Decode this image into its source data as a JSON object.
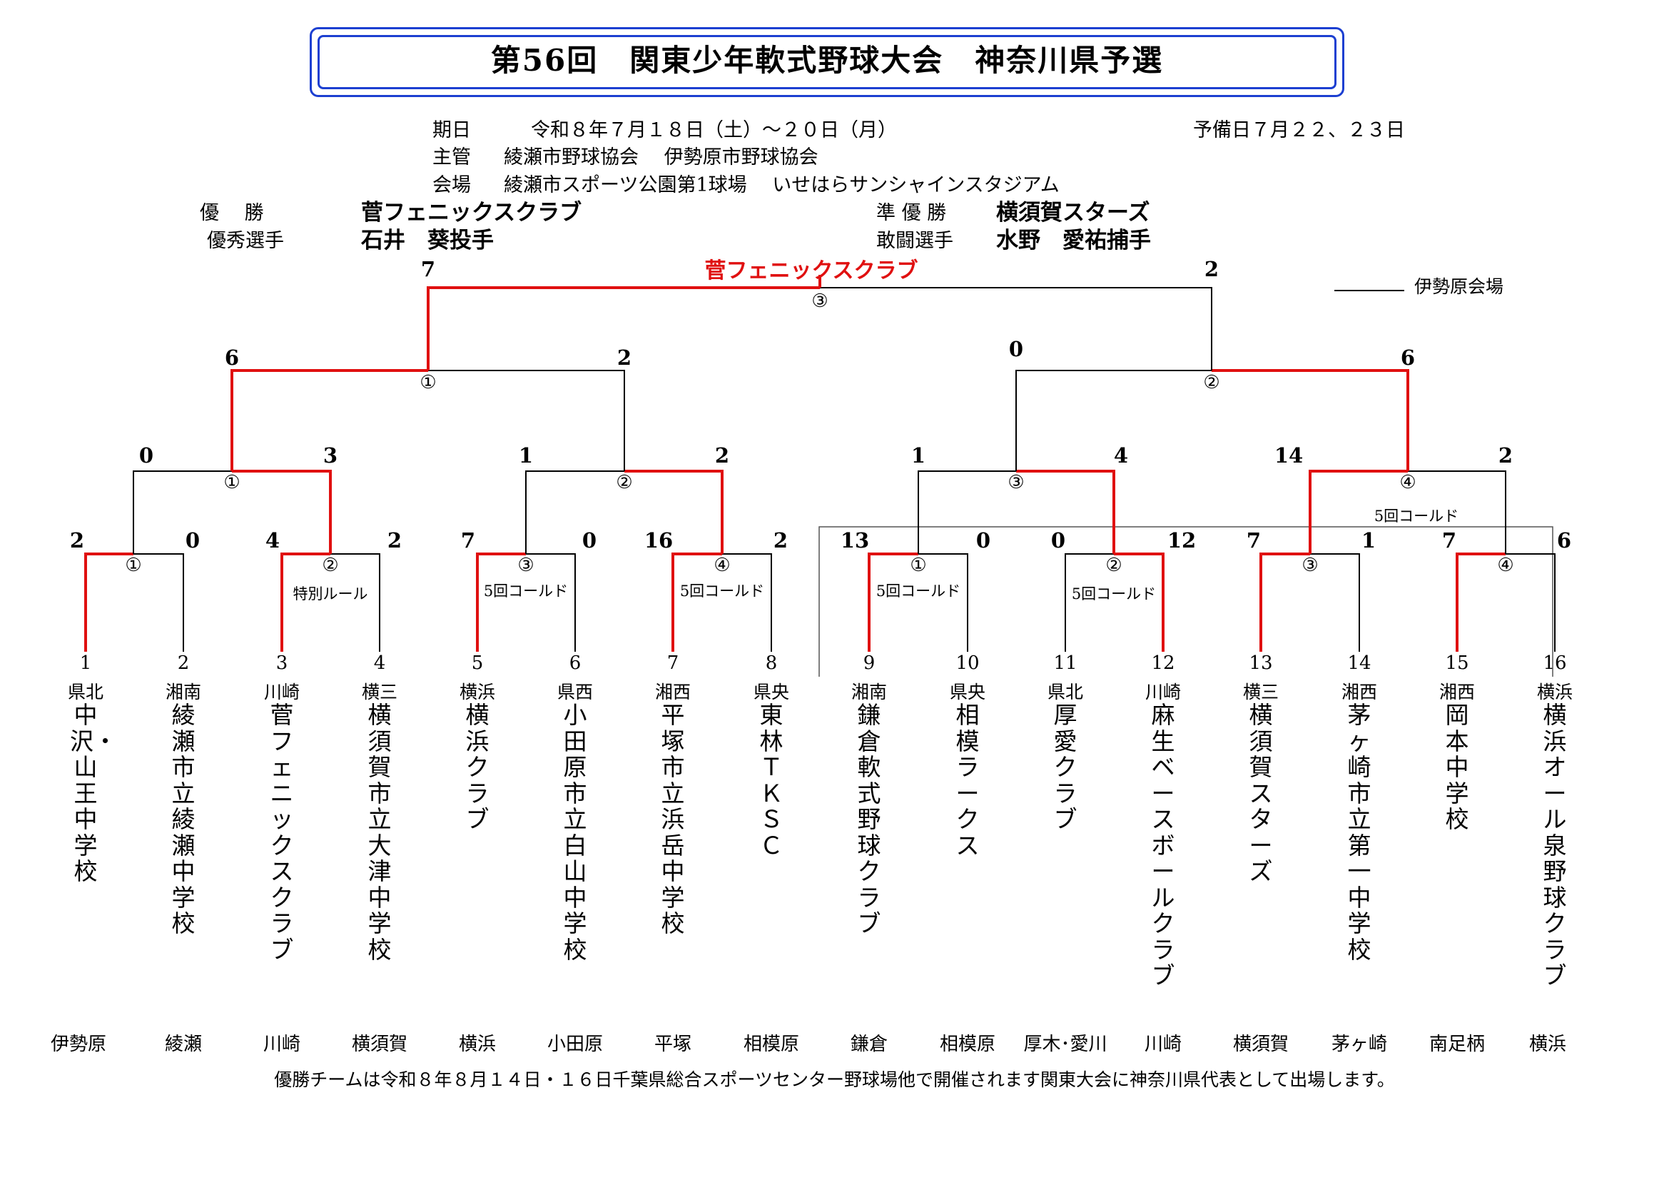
{
  "title": "第56回　関東少年軟式野球大会　神奈川県予選",
  "info": {
    "date_label": "期日",
    "date_value": "令和８年７月１８日（土）～２０日（月）",
    "reserve": "予備日７月２２、２３日",
    "host_label": "主管",
    "host_value": "綾瀬市野球協会　 伊勢原市野球協会",
    "venue_label": "会場",
    "venue_value": "綾瀬市スポーツ公園第1球場　 いせはらサンシャインスタジアム"
  },
  "awards": {
    "winner_label": "優　 勝",
    "winner": "菅フェニックスクラブ",
    "runner_label": "準 優 勝",
    "runner": "横須賀スターズ",
    "mvp_label": "優秀選手",
    "mvp": "石井　葵投手",
    "fight_label": "敢闘選手",
    "fight": "水野　愛祐捕手"
  },
  "legend": "伊勢原会場",
  "champion_label": "菅フェニックスクラブ",
  "footer": "優勝チームは令和８年８月１４日・１６日千葉県総合スポーツセンター野球場他で開催されます関東大会に神奈川県代表として出場します。",
  "bracket": {
    "final": {
      "left": "7",
      "right": "2",
      "game": "③"
    },
    "semis": [
      {
        "left": "6",
        "right": "2",
        "game": "①"
      },
      {
        "left": "0",
        "right": "6",
        "game": "②"
      }
    ],
    "quarters": [
      {
        "left": "0",
        "right": "3",
        "game": "①"
      },
      {
        "left": "1",
        "right": "2",
        "game": "②"
      },
      {
        "left": "1",
        "right": "4",
        "game": "③"
      },
      {
        "left": "14",
        "right": "2",
        "game": "④",
        "note": "5回コールド"
      }
    ],
    "first_round": [
      {
        "left": "2",
        "right": "0",
        "game": "①"
      },
      {
        "left": "4",
        "right": "2",
        "game": "②",
        "note": "特別ルール"
      },
      {
        "left": "7",
        "right": "0",
        "game": "③",
        "note": "5回コールド"
      },
      {
        "left": "16",
        "right": "2",
        "game": "④",
        "note": "5回コールド"
      },
      {
        "left": "13",
        "right": "0",
        "game": "①",
        "note": "5回コールド"
      },
      {
        "left": "0",
        "right": "12",
        "game": "②",
        "note": "5回コールド"
      },
      {
        "left": "7",
        "right": "1",
        "game": "③"
      },
      {
        "left": "7",
        "right": "6",
        "game": "④"
      }
    ]
  },
  "teams": [
    {
      "seed": "1",
      "pref": "県北",
      "name": "中沢・山王中学校",
      "venue": "伊勢原"
    },
    {
      "seed": "2",
      "pref": "湘南",
      "name": "綾瀬市立綾瀬中学校",
      "venue": "綾瀬"
    },
    {
      "seed": "3",
      "pref": "川崎",
      "name": "菅フェニックスクラブ",
      "venue": "川崎"
    },
    {
      "seed": "4",
      "pref": "横三",
      "name": "横須賀市立大津中学校",
      "venue": "横須賀"
    },
    {
      "seed": "5",
      "pref": "横浜",
      "name": "横浜クラブ",
      "venue": "横浜"
    },
    {
      "seed": "6",
      "pref": "県西",
      "name": "小田原市立白山中学校",
      "venue": "小田原"
    },
    {
      "seed": "7",
      "pref": "湘西",
      "name": "平塚市立浜岳中学校",
      "venue": "平塚"
    },
    {
      "seed": "8",
      "pref": "県央",
      "name": "東林　ＴＫＳＣ",
      "venue": "相模原"
    },
    {
      "seed": "9",
      "pref": "湘南",
      "name": "鎌倉軟式野球クラブ",
      "venue": "鎌倉"
    },
    {
      "seed": "10",
      "pref": "県央",
      "name": "相模ラークス",
      "venue": "相模原"
    },
    {
      "seed": "11",
      "pref": "県北",
      "name": "厚愛クラブ",
      "venue": "厚木･愛川"
    },
    {
      "seed": "12",
      "pref": "川崎",
      "name": "麻生ベースボールクラブ",
      "venue": "川崎"
    },
    {
      "seed": "13",
      "pref": "横三",
      "name": "横須賀スターズ",
      "venue": "横須賀"
    },
    {
      "seed": "14",
      "pref": "湘西",
      "name": "茅ヶ崎市立第一中学校",
      "venue": "茅ヶ崎"
    },
    {
      "seed": "15",
      "pref": "湘西",
      "name": "岡本中学校",
      "venue": "南足柄"
    },
    {
      "seed": "16",
      "pref": "横浜",
      "name": "横浜オール泉野球クラブ",
      "venue": "横浜"
    }
  ],
  "colors": {
    "win": "#e01010",
    "line": "#000000",
    "frame": "#1c3fd1"
  }
}
